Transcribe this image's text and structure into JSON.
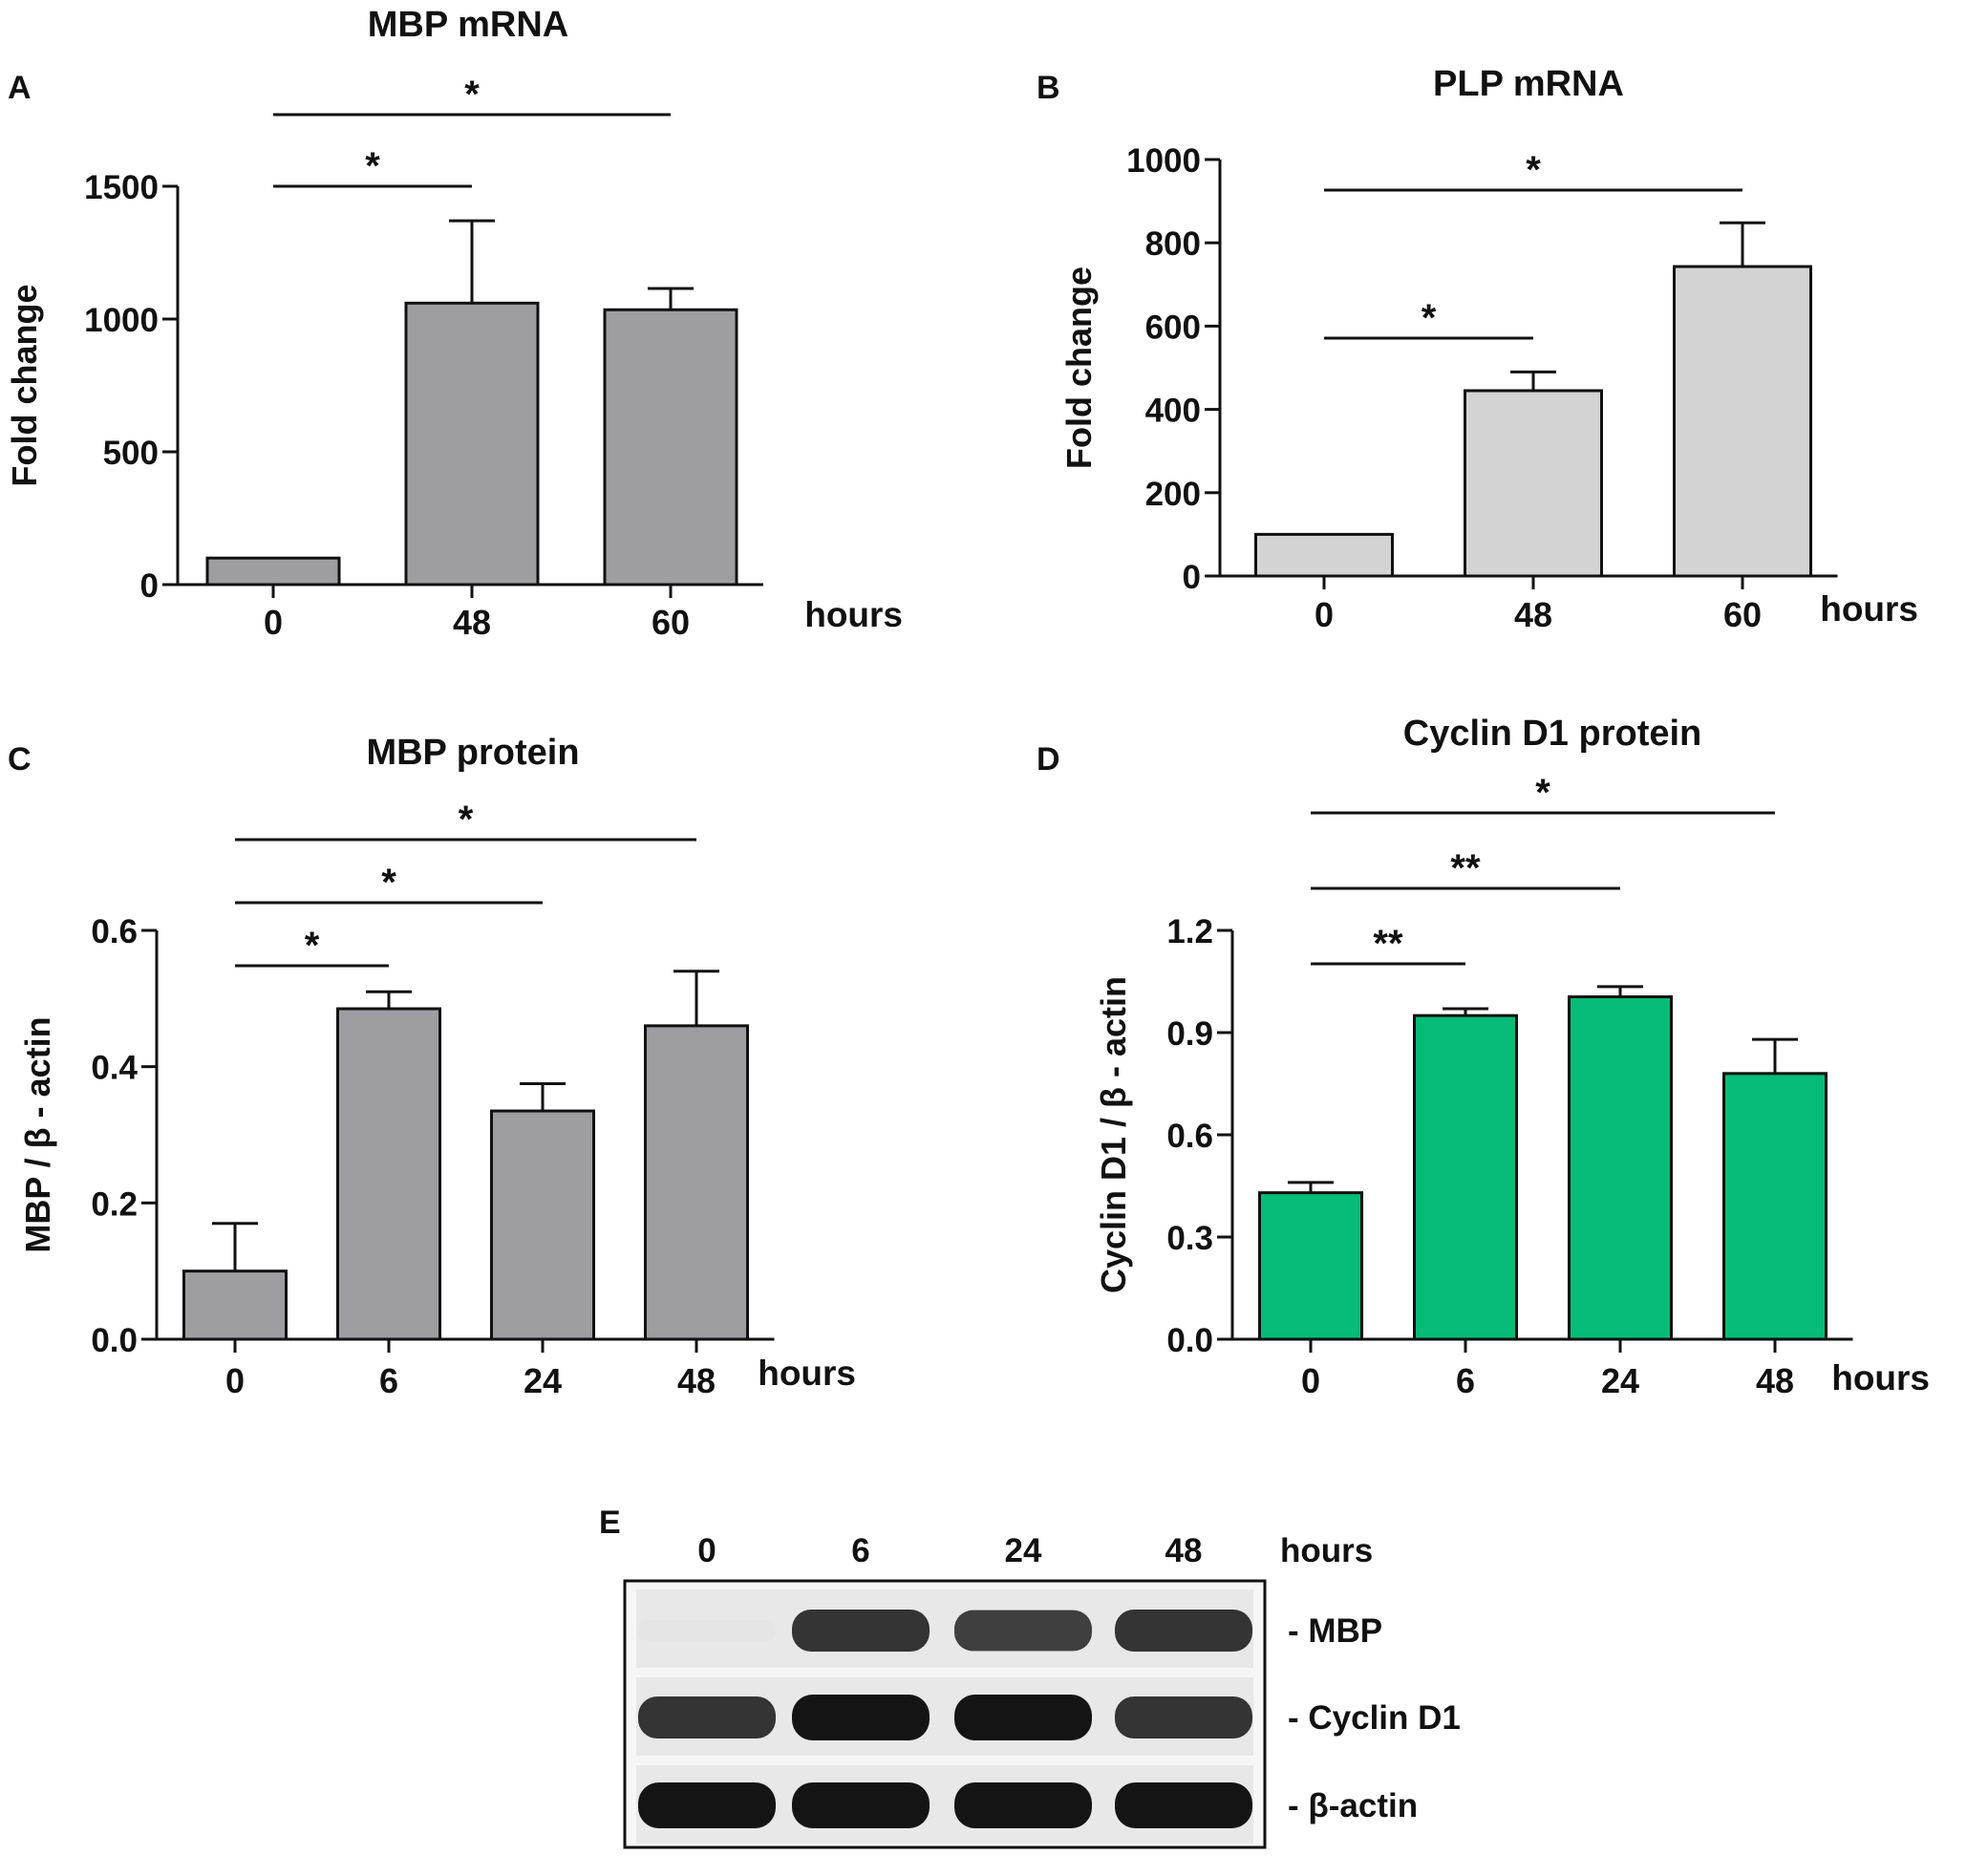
{
  "colors": {
    "gray_bar": "#9d9da2",
    "light_bar": "#d3d3d3",
    "green_bar": "#07bc78",
    "ink": "#111111"
  },
  "panels": [
    {
      "id": "A",
      "letter": "A"
    },
    {
      "id": "B",
      "letter": "B"
    },
    {
      "id": "C",
      "letter": "C"
    },
    {
      "id": "D",
      "letter": "D"
    }
  ],
  "chart_data": [
    {
      "panel": "A",
      "type": "bar",
      "title": "MBP mRNA",
      "ylabel": "Fold change",
      "xlabel": "hours",
      "categories": [
        "0",
        "48",
        "60"
      ],
      "values": [
        100,
        1060,
        1035
      ],
      "errors": [
        0,
        310,
        80
      ],
      "ylim": [
        0,
        1500
      ],
      "yticks": [
        "0",
        "500",
        "1000",
        "1500"
      ],
      "color": "gray_bar",
      "significance": [
        {
          "from": 0,
          "to": 1,
          "label": "*"
        },
        {
          "from": 0,
          "to": 2,
          "label": "*"
        }
      ]
    },
    {
      "panel": "B",
      "type": "bar",
      "title": "PLP mRNA",
      "ylabel": "Fold change",
      "xlabel": "hours",
      "categories": [
        "0",
        "48",
        "60"
      ],
      "values": [
        100,
        445,
        743
      ],
      "errors": [
        0,
        45,
        105
      ],
      "ylim": [
        0,
        1000
      ],
      "yticks": [
        "0",
        "200",
        "400",
        "600",
        "800",
        "1000"
      ],
      "color": "light_bar",
      "significance": [
        {
          "from": 0,
          "to": 1,
          "label": "*"
        },
        {
          "from": 0,
          "to": 2,
          "label": "*"
        }
      ]
    },
    {
      "panel": "C",
      "type": "bar",
      "title": "MBP protein",
      "ylabel": "MBP / β - actin",
      "xlabel": "hours",
      "categories": [
        "0",
        "6",
        "24",
        "48"
      ],
      "values": [
        0.1,
        0.485,
        0.335,
        0.46
      ],
      "errors": [
        0.07,
        0.025,
        0.04,
        0.08
      ],
      "ylim": [
        0,
        0.6
      ],
      "yticks": [
        "0.0",
        "0.2",
        "0.4",
        "0.6"
      ],
      "color": "gray_bar",
      "significance": [
        {
          "from": 0,
          "to": 1,
          "label": "*"
        },
        {
          "from": 0,
          "to": 2,
          "label": "*"
        },
        {
          "from": 0,
          "to": 3,
          "label": "*"
        }
      ]
    },
    {
      "panel": "D",
      "type": "bar",
      "title": "Cyclin D1 protein",
      "ylabel": "Cyclin D1 / β - actin",
      "xlabel": "hours",
      "categories": [
        "0",
        "6",
        "24",
        "48"
      ],
      "values": [
        0.43,
        0.95,
        1.005,
        0.78
      ],
      "errors": [
        0.03,
        0.02,
        0.03,
        0.1
      ],
      "ylim": [
        0,
        1.2
      ],
      "yticks": [
        "0.0",
        "0.3",
        "0.6",
        "0.9",
        "1.2"
      ],
      "color": "green_bar",
      "significance": [
        {
          "from": 0,
          "to": 1,
          "label": "**"
        },
        {
          "from": 0,
          "to": 2,
          "label": "**"
        },
        {
          "from": 0,
          "to": 3,
          "label": "*"
        }
      ]
    }
  ],
  "blot": {
    "letter": "E",
    "lanes": [
      "0",
      "6",
      "24",
      "48"
    ],
    "unit": "hours",
    "rows": [
      {
        "label": "- MBP",
        "intensity": [
          0.03,
          0.85,
          0.8,
          0.85
        ]
      },
      {
        "label": "- Cyclin D1",
        "intensity": [
          0.85,
          1.0,
          1.0,
          0.85
        ]
      },
      {
        "label": "- β-actin",
        "intensity": [
          1.0,
          1.0,
          1.0,
          1.0
        ]
      }
    ]
  }
}
